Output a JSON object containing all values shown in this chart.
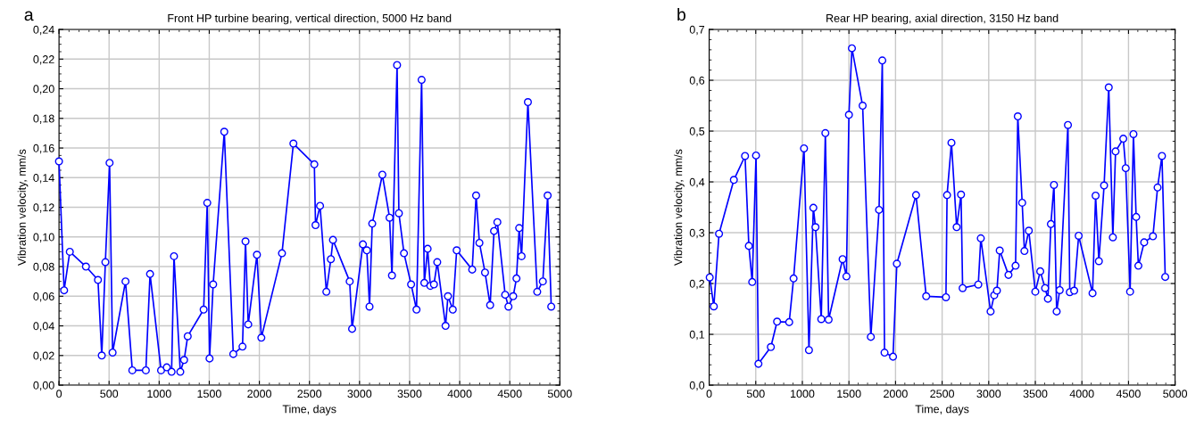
{
  "chart_data": [
    {
      "type": "line",
      "title": "Front HP turbine bearing, vertical direction, 5000 Hz band",
      "xlabel": "Time, days",
      "ylabel": "Vibration velocity, mm/s",
      "annotations": [
        "a"
      ],
      "marker": "circle",
      "line_style": "solid",
      "grid": true,
      "xlim": [
        0,
        5000
      ],
      "xticks": [
        0,
        500,
        1000,
        1500,
        2000,
        2500,
        3000,
        3500,
        4000,
        4500,
        5000
      ],
      "ylim": [
        0,
        0.24
      ],
      "yticks": [
        {
          "value": 0,
          "label": "0,00"
        },
        {
          "value": 0.02,
          "label": "0,02"
        },
        {
          "value": 0.04,
          "label": "0,04"
        },
        {
          "value": 0.06,
          "label": "0,06"
        },
        {
          "value": 0.08,
          "label": "0,08"
        },
        {
          "value": 0.1,
          "label": "0,10"
        },
        {
          "value": 0.12,
          "label": "0,12"
        },
        {
          "value": 0.14,
          "label": "0,14"
        },
        {
          "value": 0.16,
          "label": "0,16"
        },
        {
          "value": 0.18,
          "label": "0,18"
        },
        {
          "value": 0.2,
          "label": "0,20"
        },
        {
          "value": 0.22,
          "label": "0,22"
        },
        {
          "value": 0.24,
          "label": "0,24"
        }
      ],
      "series": [
        {
          "color": "#0000ff",
          "x": [
            0,
            51,
            108,
            269,
            389,
            427,
            463,
            505,
            535,
            664,
            732,
            867,
            909,
            1019,
            1076,
            1124,
            1148,
            1211,
            1249,
            1285,
            1444,
            1480,
            1503,
            1539,
            1650,
            1740,
            1832,
            1862,
            1889,
            1976,
            2020,
            2226,
            2340,
            2549,
            2561,
            2606,
            2669,
            2714,
            2735,
            2902,
            2926,
            3034,
            3073,
            3100,
            3127,
            3228,
            3300,
            3324,
            3375,
            3393,
            3444,
            3515,
            3569,
            3620,
            3647,
            3680,
            3707,
            3743,
            3776,
            3859,
            3883,
            3931,
            3970,
            4125,
            4164,
            4197,
            4253,
            4304,
            4343,
            4376,
            4454,
            4487,
            4534,
            4567,
            4594,
            4618,
            4681,
            4774,
            4830,
            4878,
            4914
          ],
          "values": [
            0.151,
            0.064,
            0.09,
            0.08,
            0.071,
            0.02,
            0.083,
            0.15,
            0.022,
            0.07,
            0.01,
            0.01,
            0.075,
            0.01,
            0.012,
            0.009,
            0.087,
            0.009,
            0.017,
            0.033,
            0.051,
            0.123,
            0.018,
            0.068,
            0.171,
            0.021,
            0.026,
            0.097,
            0.041,
            0.088,
            0.032,
            0.089,
            0.163,
            0.149,
            0.108,
            0.121,
            0.063,
            0.085,
            0.098,
            0.07,
            0.038,
            0.095,
            0.091,
            0.053,
            0.109,
            0.142,
            0.113,
            0.074,
            0.216,
            0.116,
            0.089,
            0.068,
            0.051,
            0.206,
            0.069,
            0.092,
            0.067,
            0.068,
            0.083,
            0.04,
            0.06,
            0.051,
            0.091,
            0.078,
            0.128,
            0.096,
            0.076,
            0.054,
            0.104,
            0.11,
            0.061,
            0.053,
            0.06,
            0.072,
            0.106,
            0.087,
            0.191,
            0.063,
            0.07,
            0.128,
            0.053
          ]
        }
      ]
    },
    {
      "type": "line",
      "title": "Rear HP bearing, axial direction, 3150 Hz band",
      "xlabel": "Time, days",
      "ylabel": "Vibration velocity, mm/s",
      "annotations": [
        "b"
      ],
      "marker": "circle",
      "line_style": "solid",
      "grid": true,
      "xlim": [
        0,
        5000
      ],
      "xticks": [
        0,
        500,
        1000,
        1500,
        2000,
        2500,
        3000,
        3500,
        4000,
        4500,
        5000
      ],
      "ylim": [
        0,
        0.7
      ],
      "yticks": [
        {
          "value": 0,
          "label": "0,0"
        },
        {
          "value": 0.1,
          "label": "0,1"
        },
        {
          "value": 0.2,
          "label": "0,2"
        },
        {
          "value": 0.3,
          "label": "0,3"
        },
        {
          "value": 0.4,
          "label": "0,4"
        },
        {
          "value": 0.5,
          "label": "0,5"
        },
        {
          "value": 0.6,
          "label": "0,6"
        },
        {
          "value": 0.7,
          "label": "0,7"
        }
      ],
      "series": [
        {
          "color": "#0000ff",
          "x": [
            6,
            50,
            106,
            265,
            385,
            426,
            462,
            503,
            529,
            662,
            729,
            859,
            906,
            1018,
            1071,
            1118,
            1141,
            1203,
            1247,
            1282,
            1432,
            1473,
            1500,
            1532,
            1647,
            1735,
            1823,
            1858,
            1882,
            1973,
            2014,
            2220,
            2329,
            2541,
            2553,
            2600,
            2656,
            2703,
            2720,
            2888,
            2915,
            3020,
            3059,
            3088,
            3118,
            3212,
            3288,
            3312,
            3359,
            3383,
            3430,
            3500,
            3553,
            3605,
            3635,
            3667,
            3700,
            3729,
            3762,
            3850,
            3870,
            3917,
            3965,
            4114,
            4147,
            4182,
            4238,
            4288,
            4332,
            4361,
            4444,
            4470,
            4517,
            4553,
            4582,
            4606,
            4668,
            4762,
            4812,
            4859,
            4894
          ],
          "values": [
            0.212,
            0.155,
            0.298,
            0.404,
            0.451,
            0.274,
            0.203,
            0.452,
            0.042,
            0.075,
            0.125,
            0.124,
            0.21,
            0.466,
            0.069,
            0.349,
            0.311,
            0.13,
            0.496,
            0.129,
            0.248,
            0.214,
            0.532,
            0.663,
            0.55,
            0.095,
            0.345,
            0.639,
            0.064,
            0.056,
            0.239,
            0.374,
            0.175,
            0.173,
            0.374,
            0.477,
            0.311,
            0.375,
            0.191,
            0.198,
            0.289,
            0.145,
            0.177,
            0.186,
            0.265,
            0.217,
            0.235,
            0.529,
            0.359,
            0.264,
            0.304,
            0.184,
            0.224,
            0.191,
            0.17,
            0.317,
            0.394,
            0.145,
            0.187,
            0.512,
            0.183,
            0.186,
            0.294,
            0.181,
            0.373,
            0.244,
            0.393,
            0.586,
            0.291,
            0.46,
            0.485,
            0.427,
            0.184,
            0.494,
            0.331,
            0.235,
            0.281,
            0.293,
            0.389,
            0.451,
            0.213
          ]
        }
      ]
    }
  ]
}
